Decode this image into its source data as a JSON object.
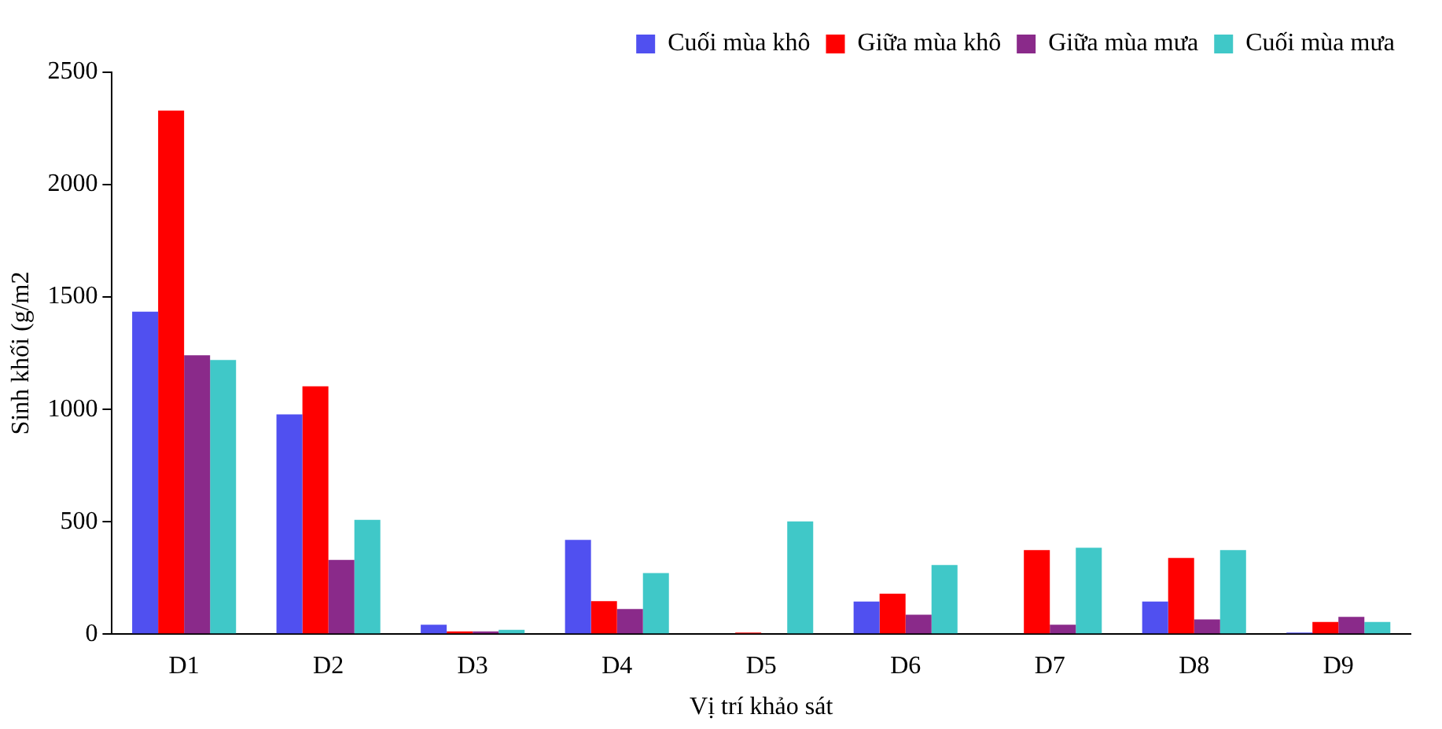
{
  "chart_data": {
    "type": "bar",
    "xlabel": "Vị trí khảo sát",
    "ylabel": "Sinh khối (g/m2",
    "categories": [
      "D1",
      "D2",
      "D3",
      "D4",
      "D5",
      "D6",
      "D7",
      "D8",
      "D9"
    ],
    "series": [
      {
        "name": "Cuối mùa khô",
        "color": "#5050f0",
        "values": [
          1435,
          978,
          42,
          419,
          0,
          145,
          0,
          145,
          7
        ]
      },
      {
        "name": "Giữa mùa khô",
        "color": "#ff0000",
        "values": [
          2330,
          1103,
          12,
          147,
          7,
          180,
          374,
          339,
          54
        ]
      },
      {
        "name": "Giữa mùa mưa",
        "color": "#8a2a8a",
        "values": [
          1241,
          330,
          12,
          112,
          0,
          86,
          42,
          65,
          77
        ]
      },
      {
        "name": "Cuối mùa mưa",
        "color": "#40c8c8",
        "values": [
          1220,
          508,
          19,
          272,
          501,
          307,
          384,
          374,
          54
        ]
      }
    ],
    "ylim": [
      0,
      2500
    ],
    "yticks": [
      0,
      500,
      1000,
      1500,
      2000,
      2500
    ],
    "grid": false,
    "legend": "top"
  }
}
